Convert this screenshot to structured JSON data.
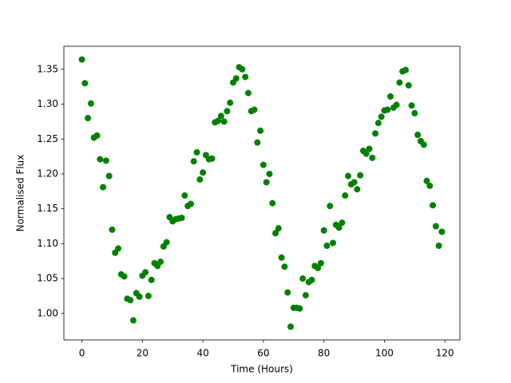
{
  "chart_data": {
    "type": "scatter",
    "xlabel": "Time (Hours)",
    "ylabel": "Normalised Flux",
    "color": "green",
    "grid": false,
    "x": [
      0,
      1,
      2,
      3,
      4,
      5,
      6,
      7,
      8,
      9,
      10,
      11,
      12,
      13,
      14,
      15,
      16,
      17,
      18,
      19,
      20,
      21,
      22,
      23,
      24,
      25,
      26,
      27,
      28,
      29,
      30,
      31,
      32,
      33,
      34,
      35,
      36,
      37,
      38,
      39,
      40,
      41,
      42,
      43,
      44,
      45,
      46,
      47,
      48,
      49,
      50,
      51,
      52,
      53,
      54,
      55,
      56,
      57,
      58,
      59,
      60,
      61,
      62,
      63,
      64,
      65,
      66,
      67,
      68,
      69,
      70,
      71,
      72,
      73,
      74,
      75,
      76,
      77,
      78,
      79,
      80,
      81,
      82,
      83,
      84,
      85,
      86,
      87,
      88,
      89,
      90,
      91,
      92,
      93,
      94,
      95,
      96,
      97,
      98,
      99,
      100,
      101,
      102,
      103,
      104,
      105,
      106,
      107,
      108,
      109,
      110,
      111,
      112,
      113,
      114,
      115,
      116,
      117,
      118,
      119
    ],
    "values": [
      1.364,
      1.33,
      1.28,
      1.301,
      1.252,
      1.255,
      1.221,
      1.181,
      1.219,
      1.197,
      1.12,
      1.087,
      1.093,
      1.056,
      1.053,
      1.021,
      1.019,
      0.99,
      1.029,
      1.024,
      1.054,
      1.059,
      1.025,
      1.048,
      1.072,
      1.068,
      1.074,
      1.096,
      1.102,
      1.138,
      1.132,
      1.135,
      1.136,
      1.137,
      1.169,
      1.154,
      1.157,
      1.218,
      1.231,
      1.192,
      1.202,
      1.227,
      1.221,
      1.222,
      1.274,
      1.276,
      1.283,
      1.275,
      1.29,
      1.302,
      1.331,
      1.337,
      1.353,
      1.35,
      1.339,
      1.316,
      1.29,
      1.292,
      1.245,
      1.262,
      1.213,
      1.188,
      1.2,
      1.158,
      1.115,
      1.122,
      1.08,
      1.067,
      1.03,
      0.981,
      1.008,
      1.008,
      1.007,
      1.05,
      1.026,
      1.045,
      1.048,
      1.068,
      1.065,
      1.072,
      1.119,
      1.097,
      1.154,
      1.101,
      1.127,
      1.123,
      1.13,
      1.169,
      1.197,
      1.185,
      1.188,
      1.178,
      1.198,
      1.233,
      1.229,
      1.236,
      1.223,
      1.258,
      1.273,
      1.282,
      1.291,
      1.292,
      1.311,
      1.295,
      1.299,
      1.331,
      1.347,
      1.349,
      1.327,
      1.298,
      1.287,
      1.256,
      1.247,
      1.242,
      1.19,
      1.183,
      1.155,
      1.125,
      1.097,
      1.117
    ],
    "xlim": [
      -5.95,
      124.95
    ],
    "xticks": [
      0,
      20,
      40,
      60,
      80,
      100,
      120
    ],
    "ylim": [
      0.962,
      1.383
    ],
    "yticks": [
      {
        "value": 1,
        "label": "1.00"
      },
      1.05,
      {
        "value": 1.1,
        "label": "1.10"
      },
      1.15,
      {
        "value": 1.2,
        "label": "1.20"
      },
      1.25,
      {
        "value": 1.3,
        "label": "1.30"
      },
      1.35
    ]
  }
}
